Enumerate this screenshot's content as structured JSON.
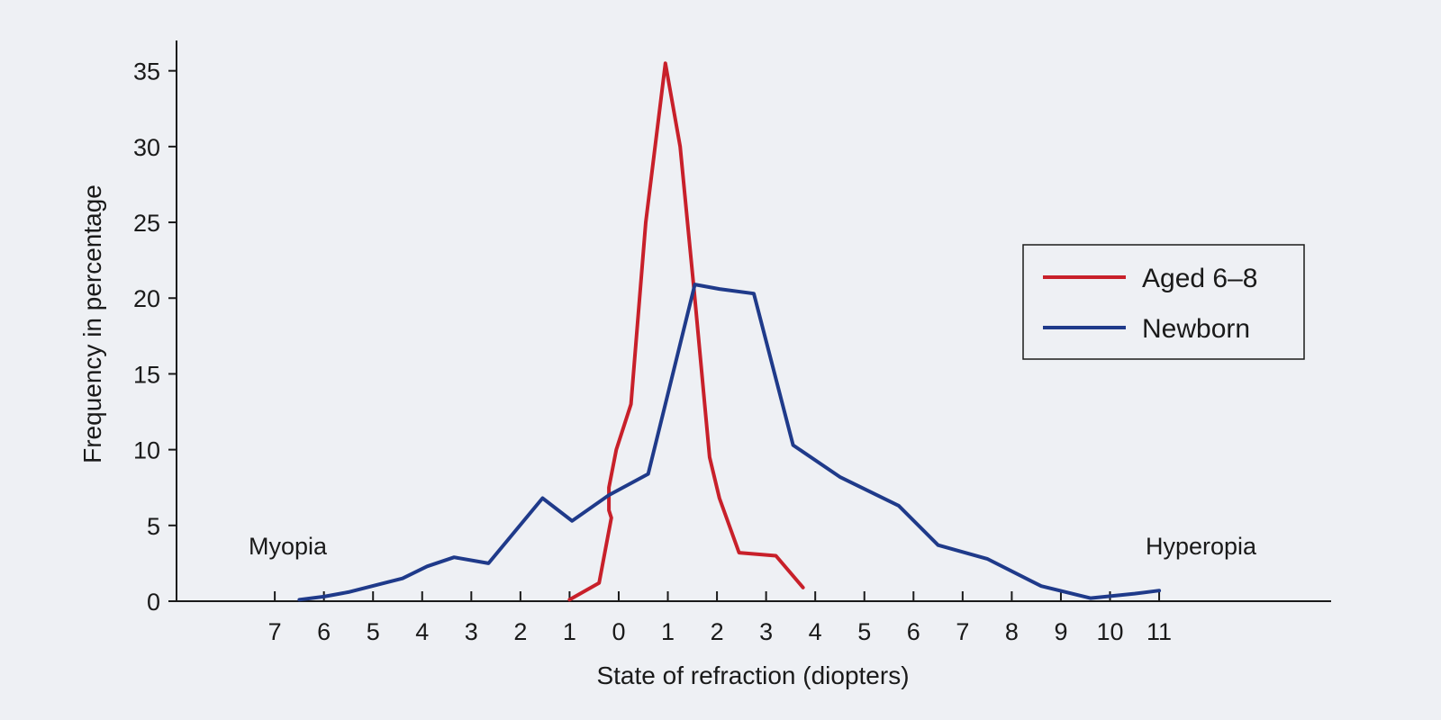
{
  "chart_data": {
    "type": "line",
    "xlabel": "State of refraction (diopters)",
    "ylabel": "Frequency in percentage",
    "x_tick_labels": [
      "7",
      "6",
      "5",
      "4",
      "3",
      "2",
      "1",
      "0",
      "1",
      "2",
      "3",
      "4",
      "5",
      "6",
      "7",
      "8",
      "9",
      "10",
      "11"
    ],
    "x_tick_values": [
      -7,
      -6,
      -5,
      -4,
      -3,
      -2,
      -1,
      0,
      1,
      2,
      3,
      4,
      5,
      6,
      7,
      8,
      9,
      10,
      11
    ],
    "y_ticks": [
      0,
      5,
      10,
      15,
      20,
      25,
      30,
      35
    ],
    "xlim": [
      -9,
      14.5
    ],
    "ylim": [
      0,
      37
    ],
    "grid": false,
    "legend_position": "right",
    "region_labels": {
      "left": "Myopia",
      "right": "Hyperopia"
    },
    "series": [
      {
        "name": "Aged 6–8",
        "color": "#c8202a",
        "points": [
          [
            -1.0,
            0.1
          ],
          [
            -0.4,
            1.2
          ],
          [
            -0.15,
            5.5
          ],
          [
            -0.2,
            6.0
          ],
          [
            -0.2,
            7.5
          ],
          [
            -0.05,
            10.0
          ],
          [
            0.25,
            13.0
          ],
          [
            0.55,
            25.0
          ],
          [
            0.95,
            35.5
          ],
          [
            1.25,
            30.0
          ],
          [
            1.55,
            20.0
          ],
          [
            1.85,
            9.5
          ],
          [
            2.05,
            6.8
          ],
          [
            2.45,
            3.2
          ],
          [
            3.2,
            3.0
          ],
          [
            3.75,
            0.9
          ]
        ]
      },
      {
        "name": "Newborn",
        "color": "#1f3a8a",
        "points": [
          [
            -6.5,
            0.1
          ],
          [
            -6.0,
            0.3
          ],
          [
            -5.5,
            0.6
          ],
          [
            -4.9,
            1.1
          ],
          [
            -4.4,
            1.5
          ],
          [
            -3.9,
            2.3
          ],
          [
            -3.35,
            2.9
          ],
          [
            -2.65,
            2.5
          ],
          [
            -1.55,
            6.8
          ],
          [
            -0.95,
            5.3
          ],
          [
            -0.2,
            7.0
          ],
          [
            0.6,
            8.4
          ],
          [
            1.55,
            20.9
          ],
          [
            2.05,
            20.6
          ],
          [
            2.75,
            20.3
          ],
          [
            3.55,
            10.3
          ],
          [
            4.5,
            8.2
          ],
          [
            5.7,
            6.3
          ],
          [
            6.5,
            3.7
          ],
          [
            7.5,
            2.8
          ],
          [
            8.6,
            1.0
          ],
          [
            9.6,
            0.2
          ],
          [
            10.5,
            0.5
          ],
          [
            11.0,
            0.7
          ]
        ]
      }
    ]
  }
}
